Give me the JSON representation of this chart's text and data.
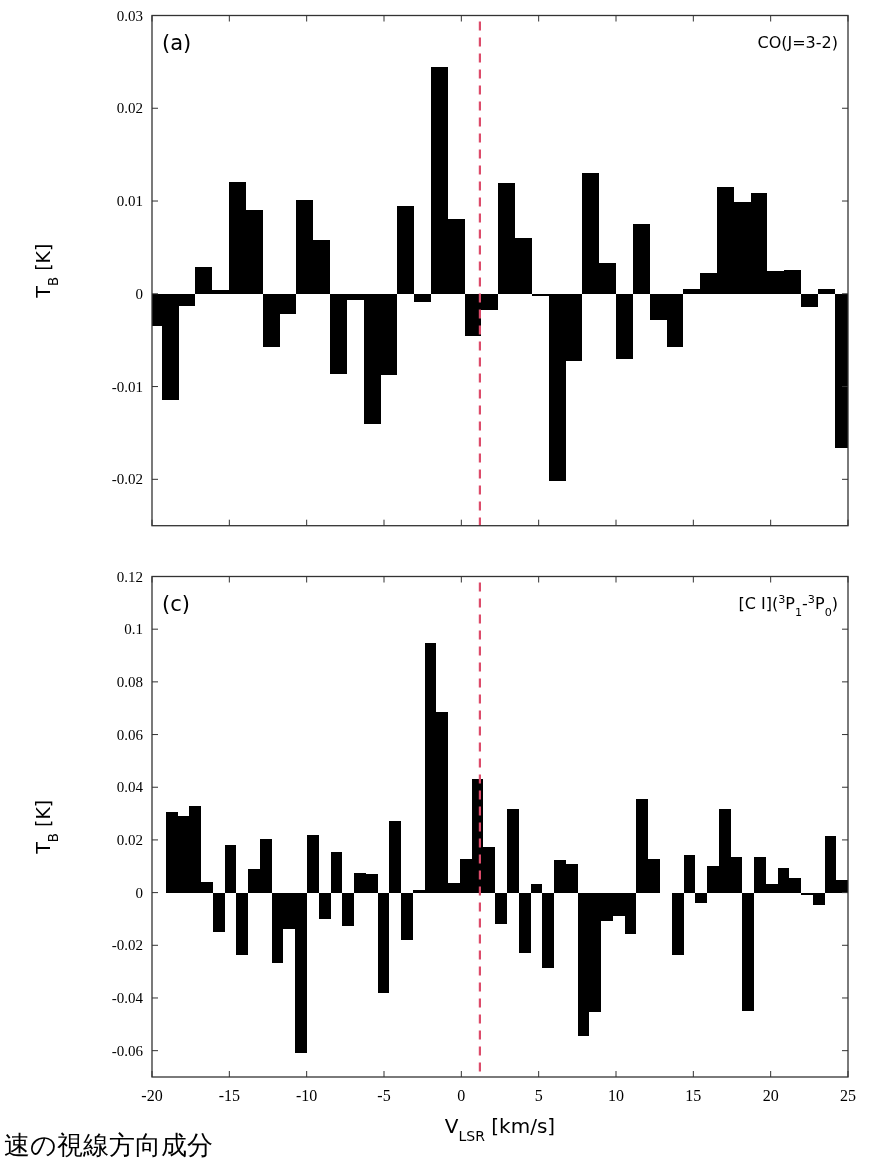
{
  "chart_data": [
    {
      "type": "histogram",
      "ylabel": "T$_{B}$ [K]",
      "annotations": [
        "(a)",
        "CO(J=3-2)"
      ],
      "color": "#000000",
      "bins": [
        -20,
        -19.36,
        -18.27,
        -17.19,
        -16.1,
        -15.01,
        -13.92,
        -12.84,
        -11.75,
        -10.66,
        -9.57,
        -8.49,
        -7.4,
        -6.31,
        -5.22,
        -4.13,
        -3.05,
        -1.96,
        -0.87,
        0.22,
        1.3,
        2.39,
        3.48,
        4.57,
        5.65,
        6.74,
        7.83,
        8.92,
        10.0,
        11.09,
        12.18,
        13.27,
        14.35,
        15.44,
        16.53,
        17.62,
        18.7,
        19.79,
        20.88,
        21.97,
        23.05,
        24.14,
        25
      ],
      "values": [
        -0.0035,
        -0.0115,
        -0.0013,
        0.0029,
        0.0004,
        0.012,
        0.009,
        -0.0057,
        -0.0022,
        0.0101,
        0.0058,
        -0.0086,
        -0.0007,
        -0.014,
        -0.0088,
        0.0095,
        -0.0009,
        0.0244,
        0.0081,
        -0.0045,
        -0.0018,
        0.0119,
        0.006,
        -0.0002,
        -0.0202,
        -0.0072,
        0.013,
        0.0033,
        -0.007,
        0.0075,
        -0.0028,
        -0.0057,
        0.0005,
        0.0022,
        0.0115,
        0.0099,
        0.0109,
        0.0025,
        0.0026,
        -0.0014,
        0.0005,
        -0.0166
      ],
      "xlim": [
        -20,
        25
      ],
      "xticks": [
        -20,
        -15,
        -10,
        -5,
        0,
        5,
        10,
        15,
        20,
        25
      ],
      "ylim": [
        -0.025,
        0.03
      ],
      "yticks": [
        -0.02,
        -0.01,
        0,
        0.01,
        0.02,
        0.03
      ],
      "tick_labels": "y",
      "ref_lines": [
        {
          "axis": "x",
          "value": 1.2,
          "color": "#dc4b6a",
          "line_style": "dashed"
        }
      ]
    },
    {
      "type": "histogram",
      "xlabel": "V$_{LSR}$ [km/s]",
      "ylabel": "T$_{B}$ [K]",
      "annotations": [
        "(c)",
        "[C I]($^{3}$P$_{1}$-$^{3}$P$_{0}$)",
        "速の視線方向成分"
      ],
      "color": "#000000",
      "bins": [
        -19.1,
        -18.34,
        -17.58,
        -16.82,
        -16.06,
        -15.3,
        -14.54,
        -13.78,
        -13.02,
        -12.26,
        -11.5,
        -10.73,
        -9.97,
        -9.21,
        -8.45,
        -7.69,
        -6.93,
        -6.17,
        -5.41,
        -4.65,
        -3.89,
        -3.13,
        -2.37,
        -1.61,
        -0.85,
        -0.09,
        0.67,
        1.43,
        2.19,
        2.95,
        3.72,
        4.48,
        5.24,
        6.0,
        6.76,
        7.52,
        8.28,
        9.04,
        9.8,
        10.56,
        11.32,
        12.08,
        12.84,
        13.6,
        14.37,
        15.13,
        15.89,
        16.65,
        17.41,
        18.17,
        18.93,
        19.69,
        20.45,
        21.21,
        21.97,
        22.73,
        23.49,
        24.25,
        25
      ],
      "values": [
        0.0306,
        0.0289,
        0.0329,
        0.0042,
        -0.0148,
        0.018,
        -0.0237,
        0.0089,
        0.0205,
        -0.0266,
        -0.014,
        -0.0607,
        0.0217,
        -0.0099,
        0.0154,
        -0.0125,
        0.0075,
        0.0071,
        -0.0382,
        0.0273,
        -0.0179,
        0.0008,
        0.0947,
        0.0686,
        0.0035,
        0.0126,
        0.0433,
        0.0175,
        -0.0118,
        0.0318,
        -0.0228,
        0.0032,
        -0.0286,
        0.0122,
        0.0109,
        -0.0545,
        -0.0455,
        -0.0109,
        -0.0087,
        -0.0156,
        0.0355,
        0.0126,
        -0.0003,
        -0.0237,
        0.0144,
        -0.0041,
        0.01,
        0.0319,
        0.0137,
        -0.0451,
        0.0137,
        0.0032,
        0.0092,
        0.0054,
        -0.001,
        -0.0047,
        0.0214,
        0.0049
      ],
      "xlim": [
        -20,
        25
      ],
      "xticks": [
        -20,
        -15,
        -10,
        -5,
        0,
        5,
        10,
        15,
        20,
        25
      ],
      "ylim": [
        -0.07,
        0.12
      ],
      "yticks": [
        -0.06,
        -0.04,
        -0.02,
        0,
        0.02,
        0.04,
        0.06,
        0.08,
        0.1,
        0.12
      ],
      "ref_lines": [
        {
          "axis": "x",
          "value": 1.2,
          "color": "#dc4b6a",
          "line_style": "dashed"
        }
      ]
    }
  ]
}
